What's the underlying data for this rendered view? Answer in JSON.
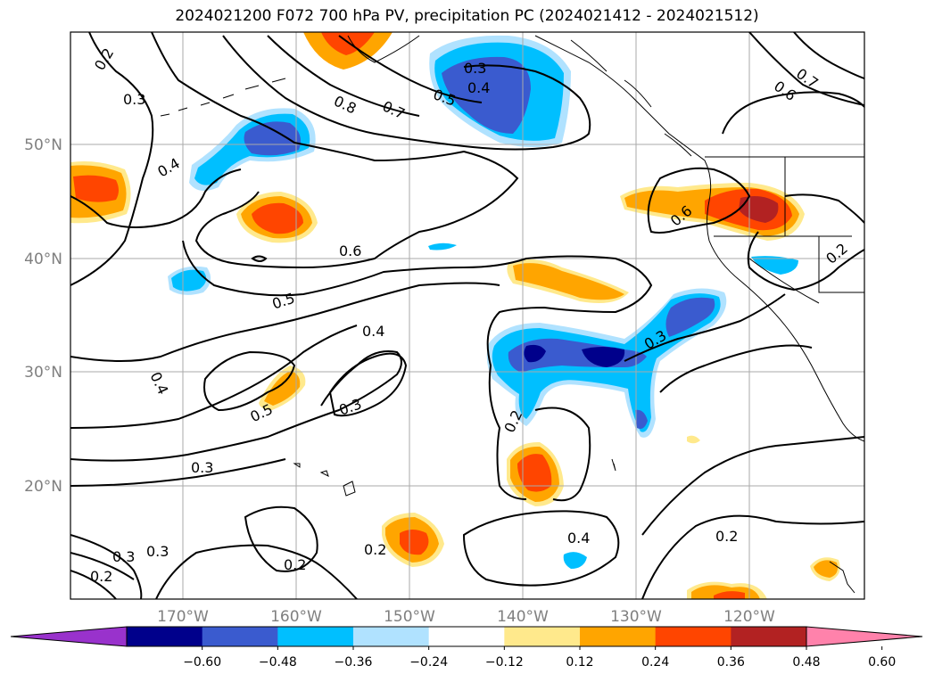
{
  "title": "2024021200 F072 700 hPa PV, precipitation PC (2024021412 - 2024021512)",
  "lon_labels": [
    "170°W",
    "160°W",
    "150°W",
    "140°W",
    "130°W",
    "120°W"
  ],
  "lat_labels": [
    "50°N",
    "40°N",
    "30°N",
    "20°N"
  ],
  "contour_labels": [
    "0.2",
    "0.3",
    "0.8",
    "0.7",
    "0.3",
    "0.4",
    "0.5",
    "0.7",
    "0.6",
    "0.4",
    "0.6",
    "0.6",
    "0.2",
    "0.5",
    "0.4",
    "0.3",
    "0.3",
    "0.5",
    "0.3",
    "0.4",
    "0.2",
    "0.3",
    "0.3",
    "0.2",
    "0.2",
    "0.4",
    "0.2",
    "0.2"
  ],
  "colorbar": {
    "colors": [
      "#9932cc",
      "#00008b",
      "#3a5bcf",
      "#00bfff",
      "#b0e2ff",
      "#ffffff",
      "#ffe98c",
      "#ffa500",
      "#ff4500",
      "#b22222",
      "#ff82ab"
    ],
    "ticks": [
      "−0.60",
      "−0.48",
      "−0.36",
      "−0.24",
      "−0.12",
      "0.12",
      "0.24",
      "0.36",
      "0.48",
      "0.60"
    ]
  }
}
